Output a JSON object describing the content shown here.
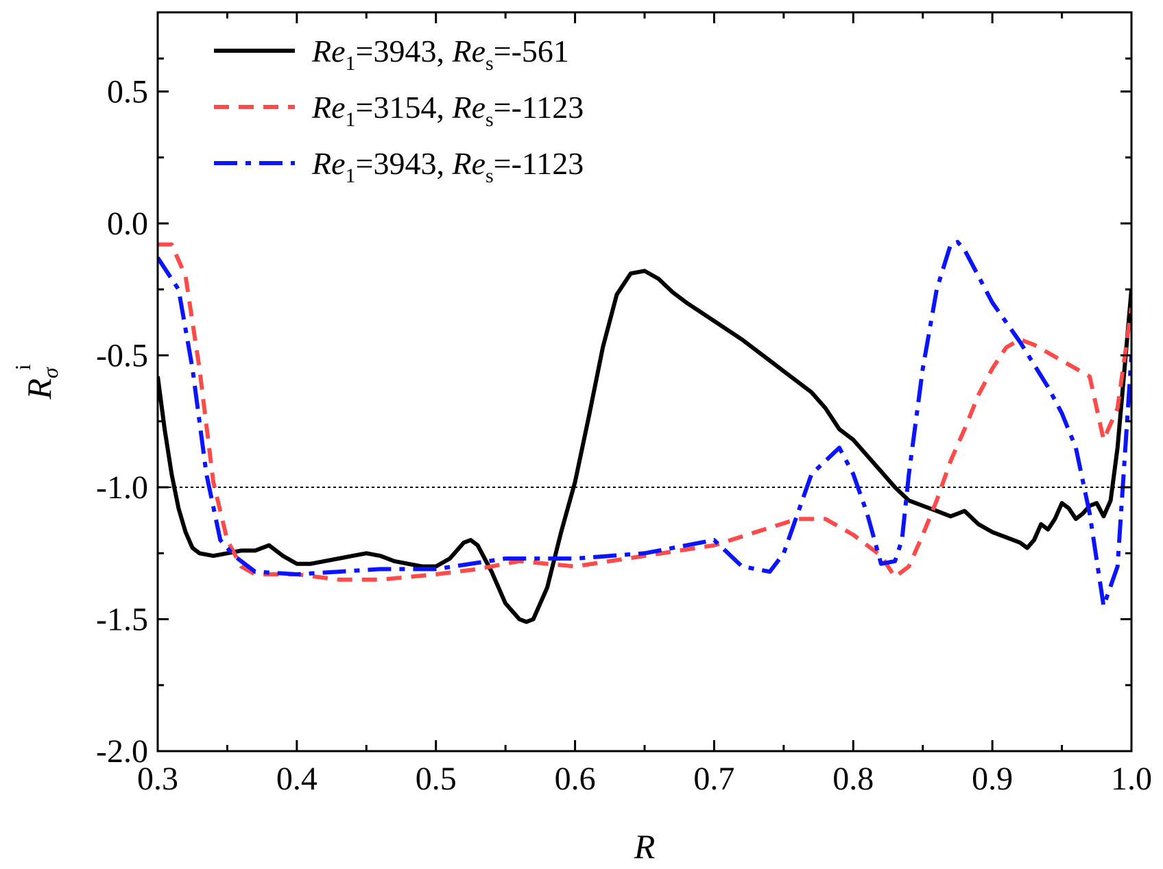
{
  "chart_data": {
    "type": "line",
    "xlabel": "R",
    "ylabel": "R",
    "ylabel_sub": "σ",
    "ylabel_sup": "i",
    "xlim": [
      0.3,
      1.0
    ],
    "ylim": [
      -2.0,
      0.8
    ],
    "xticks": [
      0.3,
      0.4,
      0.5,
      0.6,
      0.7,
      0.8,
      0.9,
      1.0
    ],
    "xtick_labels": [
      "0.3",
      "0.4",
      "0.5",
      "0.6",
      "0.7",
      "0.8",
      "0.9",
      "1.0"
    ],
    "yticks": [
      -2.0,
      -1.5,
      -1.0,
      -0.5,
      0.0,
      0.5
    ],
    "ytick_labels": [
      "-2.0",
      "-1.5",
      "-1.0",
      "-0.5",
      "0.0",
      "0.5"
    ],
    "reference_line": {
      "y": -1.0,
      "color": "#000000",
      "style": "dotted"
    },
    "legend_position": "top-left",
    "series": [
      {
        "name": "Re1=3943, Res=-561",
        "legend": {
          "a": "Re",
          "a_sub": "1",
          "b": "=3943, ",
          "c": "Re",
          "c_sub": "s",
          "d": "=-561"
        },
        "color": "#000000",
        "style": "solid",
        "x": [
          0.3,
          0.305,
          0.31,
          0.315,
          0.32,
          0.325,
          0.33,
          0.34,
          0.35,
          0.36,
          0.37,
          0.38,
          0.39,
          0.4,
          0.41,
          0.42,
          0.43,
          0.44,
          0.45,
          0.46,
          0.47,
          0.48,
          0.49,
          0.5,
          0.51,
          0.52,
          0.525,
          0.53,
          0.54,
          0.55,
          0.56,
          0.565,
          0.57,
          0.58,
          0.59,
          0.6,
          0.61,
          0.62,
          0.63,
          0.64,
          0.65,
          0.66,
          0.67,
          0.68,
          0.7,
          0.72,
          0.74,
          0.76,
          0.77,
          0.78,
          0.79,
          0.8,
          0.81,
          0.82,
          0.83,
          0.84,
          0.85,
          0.86,
          0.87,
          0.88,
          0.89,
          0.9,
          0.91,
          0.92,
          0.925,
          0.93,
          0.935,
          0.94,
          0.945,
          0.95,
          0.955,
          0.96,
          0.965,
          0.97,
          0.975,
          0.98,
          0.985,
          0.99,
          0.995,
          1.0
        ],
        "y": [
          -0.58,
          -0.78,
          -0.95,
          -1.08,
          -1.17,
          -1.23,
          -1.25,
          -1.26,
          -1.25,
          -1.24,
          -1.24,
          -1.22,
          -1.26,
          -1.29,
          -1.29,
          -1.28,
          -1.27,
          -1.26,
          -1.25,
          -1.26,
          -1.28,
          -1.29,
          -1.3,
          -1.3,
          -1.27,
          -1.21,
          -1.2,
          -1.22,
          -1.32,
          -1.44,
          -1.5,
          -1.51,
          -1.5,
          -1.38,
          -1.17,
          -0.98,
          -0.73,
          -0.47,
          -0.27,
          -0.19,
          -0.18,
          -0.21,
          -0.26,
          -0.3,
          -0.37,
          -0.44,
          -0.52,
          -0.6,
          -0.64,
          -0.7,
          -0.78,
          -0.82,
          -0.88,
          -0.94,
          -1.0,
          -1.05,
          -1.07,
          -1.09,
          -1.11,
          -1.09,
          -1.14,
          -1.17,
          -1.19,
          -1.21,
          -1.23,
          -1.2,
          -1.14,
          -1.16,
          -1.12,
          -1.06,
          -1.08,
          -1.12,
          -1.1,
          -1.07,
          -1.06,
          -1.11,
          -1.05,
          -0.85,
          -0.55,
          -0.25
        ]
      },
      {
        "name": "Re1=3154, Res=-1123",
        "legend": {
          "a": "Re",
          "a_sub": "1",
          "b": "=3154, ",
          "c": "Re",
          "c_sub": "s",
          "d": "=-1123"
        },
        "color": "#ff4a4a",
        "style": "dashed",
        "x": [
          0.3,
          0.31,
          0.32,
          0.33,
          0.34,
          0.35,
          0.36,
          0.37,
          0.4,
          0.43,
          0.46,
          0.5,
          0.53,
          0.56,
          0.6,
          0.65,
          0.7,
          0.73,
          0.76,
          0.78,
          0.8,
          0.82,
          0.83,
          0.84,
          0.85,
          0.86,
          0.87,
          0.88,
          0.89,
          0.9,
          0.91,
          0.92,
          0.93,
          0.95,
          0.97,
          0.98,
          0.99,
          1.0
        ],
        "y": [
          -0.08,
          -0.08,
          -0.2,
          -0.55,
          -0.98,
          -1.2,
          -1.3,
          -1.33,
          -1.33,
          -1.35,
          -1.35,
          -1.33,
          -1.31,
          -1.28,
          -1.3,
          -1.26,
          -1.22,
          -1.17,
          -1.12,
          -1.12,
          -1.18,
          -1.26,
          -1.34,
          -1.3,
          -1.18,
          -1.05,
          -0.9,
          -0.78,
          -0.65,
          -0.55,
          -0.47,
          -0.44,
          -0.46,
          -0.52,
          -0.58,
          -0.82,
          -0.7,
          -0.32
        ]
      },
      {
        "name": "Re1=3943, Res=-1123",
        "legend": {
          "a": "Re",
          "a_sub": "1",
          "b": "=3943, ",
          "c": "Re",
          "c_sub": "s",
          "d": "=-1123"
        },
        "color": "#0a14ff",
        "style": "dashdot",
        "x": [
          0.3,
          0.315,
          0.325,
          0.335,
          0.345,
          0.355,
          0.37,
          0.4,
          0.43,
          0.46,
          0.5,
          0.55,
          0.6,
          0.65,
          0.7,
          0.72,
          0.74,
          0.75,
          0.77,
          0.79,
          0.8,
          0.81,
          0.82,
          0.83,
          0.835,
          0.84,
          0.85,
          0.86,
          0.87,
          0.875,
          0.88,
          0.9,
          0.92,
          0.94,
          0.95,
          0.96,
          0.97,
          0.98,
          0.99,
          1.0
        ],
        "y": [
          -0.13,
          -0.25,
          -0.55,
          -0.95,
          -1.2,
          -1.26,
          -1.32,
          -1.33,
          -1.32,
          -1.31,
          -1.31,
          -1.27,
          -1.27,
          -1.25,
          -1.2,
          -1.3,
          -1.32,
          -1.25,
          -0.95,
          -0.85,
          -0.95,
          -1.1,
          -1.29,
          -1.28,
          -1.2,
          -0.95,
          -0.55,
          -0.25,
          -0.08,
          -0.07,
          -0.1,
          -0.3,
          -0.45,
          -0.62,
          -0.72,
          -0.85,
          -1.1,
          -1.45,
          -1.3,
          -0.5
        ]
      }
    ]
  }
}
